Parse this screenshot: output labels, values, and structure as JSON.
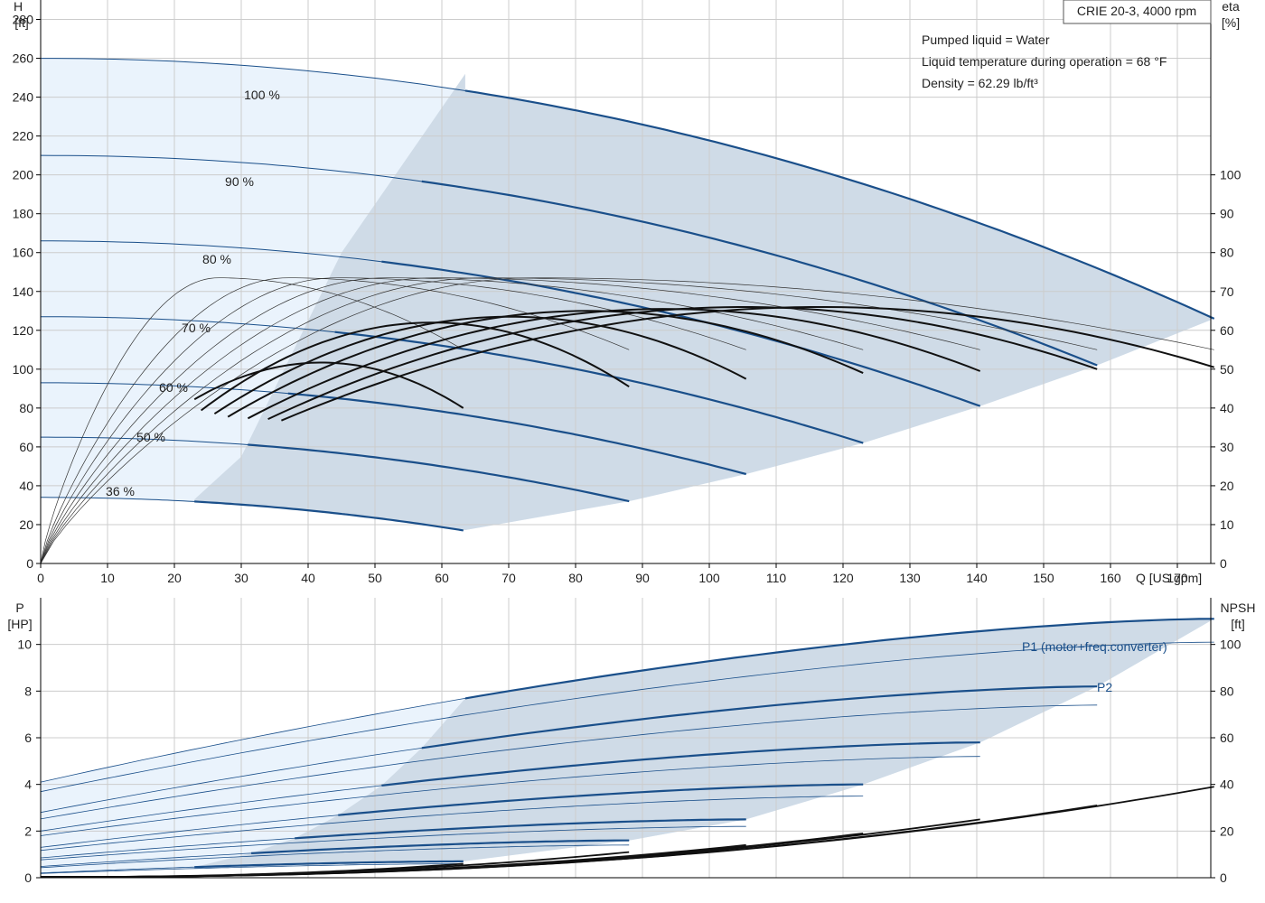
{
  "chart_data": [
    {
      "type": "line",
      "title_box": "CRIE 20-3, 4000 rpm",
      "info": [
        "Pumped liquid = Water",
        "Liquid temperature during operation = 68 °F",
        "Density = 62.29 lb/ft³"
      ],
      "ylabel_left": [
        "H",
        "[ft]"
      ],
      "ylabel_right": [
        "eta",
        "[%]"
      ],
      "xlabel": "Q [US gpm]",
      "xlim": [
        0,
        175
      ],
      "x_ticks": [
        0,
        10,
        20,
        30,
        40,
        50,
        60,
        70,
        80,
        90,
        100,
        110,
        120,
        130,
        140,
        150,
        160,
        170
      ],
      "ylim_left": [
        0,
        290
      ],
      "y_ticks_left": [
        0,
        20,
        40,
        60,
        80,
        100,
        120,
        140,
        160,
        180,
        200,
        220,
        240,
        260,
        280
      ],
      "ylim_right": [
        0,
        145
      ],
      "y_ticks_right": [
        0,
        10,
        20,
        30,
        40,
        50,
        60,
        70,
        80,
        90,
        100
      ],
      "grid": true,
      "colors": {
        "curve": "#1a4f8a",
        "eta": "#111111",
        "op_area": "#cfdbe7",
        "ext_area": "#eaf3fc",
        "grid": "#cccccc"
      },
      "speeds": [
        "100 %",
        "90 %",
        "80 %",
        "70 %",
        "60 %",
        "50 %",
        "36 %"
      ],
      "qmax": [
        175.5,
        158,
        140.5,
        123,
        105.5,
        88,
        63.2
      ],
      "shutoff_head": [
        260,
        210,
        166,
        127,
        93,
        65,
        34
      ],
      "end_head": [
        126,
        102,
        81,
        62,
        46,
        32,
        17
      ],
      "eta_peak": [
        66,
        66,
        65.5,
        65,
        63.5,
        62,
        51.7
      ],
      "eta_end": [
        50.5,
        50,
        49.5,
        49,
        47.5,
        45.5,
        40
      ],
      "eta_bep_frac": 0.665,
      "eta_start_q": [
        36,
        34,
        31,
        28,
        26,
        24,
        23
      ],
      "thin_eta_peak": 73.5,
      "thin_eta_end": 55,
      "op_boundary_left": [
        [
          23,
          33
        ],
        [
          30,
          55
        ],
        [
          45,
          160
        ],
        [
          63.5,
          252
        ]
      ]
    },
    {
      "type": "line",
      "ylabel_left": [
        "P",
        "[HP]"
      ],
      "ylabel_right": [
        "NPSH",
        "[ft]"
      ],
      "xlim": [
        0,
        175
      ],
      "ylim_left": [
        0,
        12
      ],
      "y_ticks_left": [
        0,
        2,
        4,
        6,
        8,
        10
      ],
      "ylim_right": [
        0,
        120
      ],
      "y_ticks_right": [
        0,
        20,
        40,
        60,
        80,
        100
      ],
      "p1_label": "P1 (motor+freq.converter)",
      "p2_label": "P2",
      "p1_start": [
        4.1,
        2.8,
        2.0,
        1.3,
        0.85,
        0.48,
        0.2
      ],
      "p1_end": [
        11.1,
        8.2,
        5.8,
        4.0,
        2.5,
        1.6,
        0.7
      ],
      "p2_end": [
        10.1,
        7.4,
        5.2,
        3.5,
        2.2,
        1.4,
        0.6
      ],
      "p_opstart_q": [
        63.5,
        57,
        51,
        44.5,
        38,
        31.5,
        23
      ],
      "npsh_end": [
        39,
        31,
        25,
        19,
        14,
        11,
        6
      ],
      "npsh_start": [
        0.3,
        0.3,
        0.3,
        0.3,
        0.3,
        0.3,
        0.3
      ]
    }
  ]
}
